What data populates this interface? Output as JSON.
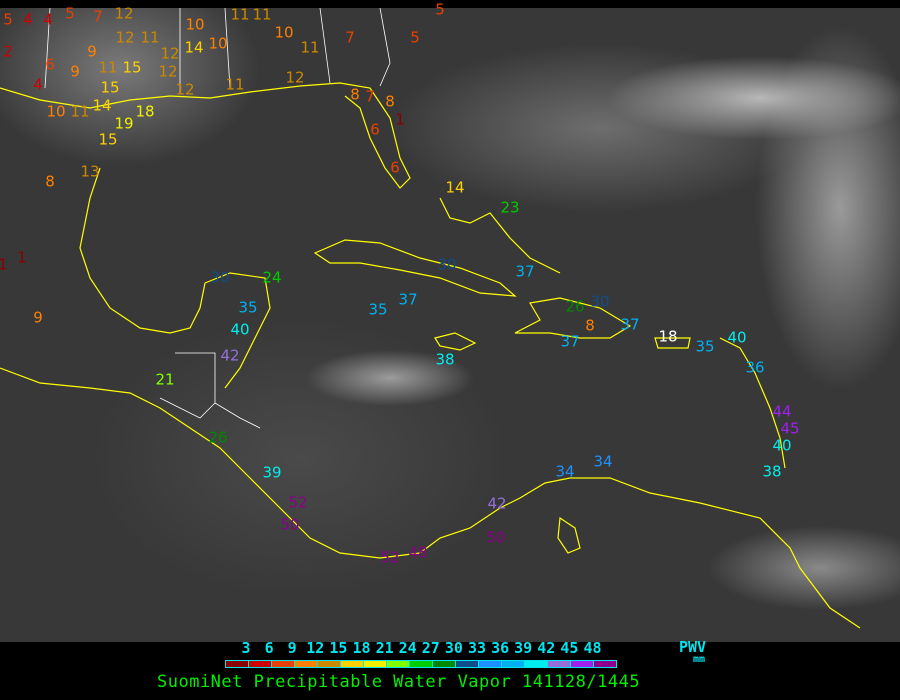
{
  "legend": {
    "ticks": [
      "3",
      "6",
      "9",
      "12",
      "15",
      "18",
      "21",
      "24",
      "27",
      "30",
      "33",
      "36",
      "39",
      "42",
      "45",
      "48"
    ],
    "colors": [
      "#8b0000",
      "#cc0000",
      "#e84000",
      "#ff8000",
      "#cc8800",
      "#ffd000",
      "#f0f000",
      "#80ff00",
      "#00cc00",
      "#008800",
      "#104e8b",
      "#1e90ff",
      "#00b0f0",
      "#00eeee",
      "#9370db",
      "#a020f0",
      "#8b008b"
    ],
    "unit_top": "PWV",
    "unit_bottom": "mm"
  },
  "caption": "SuomiNet Precipitable Water Vapor 141128/1445",
  "map": {
    "coastline_color": "#ffff00",
    "border_color": "#ffffff"
  },
  "stations": [
    "5",
    "4",
    "4",
    "5",
    "7",
    "12",
    "2",
    "6",
    "9",
    "4",
    "9",
    "12",
    "11",
    "12",
    "11",
    "15",
    "12",
    "14",
    "10",
    "10",
    "11",
    "11",
    "10",
    "11",
    "7",
    "10",
    "11",
    "14",
    "19",
    "18",
    "15",
    "15",
    "13",
    "8",
    "9",
    "1",
    "1",
    "12",
    "11",
    "12",
    "8",
    "7",
    "8",
    "6",
    "1",
    "6",
    "5",
    "5",
    "14",
    "23",
    "30",
    "24",
    "35",
    "40",
    "42",
    "21",
    "26",
    "39",
    "52",
    "50",
    "52",
    "48",
    "50",
    "42",
    "34",
    "34",
    "30",
    "37",
    "35",
    "37",
    "38",
    "37",
    "26",
    "30",
    "8",
    "37",
    "18",
    "35",
    "40",
    "36",
    "44",
    "45",
    "40",
    "38"
  ]
}
